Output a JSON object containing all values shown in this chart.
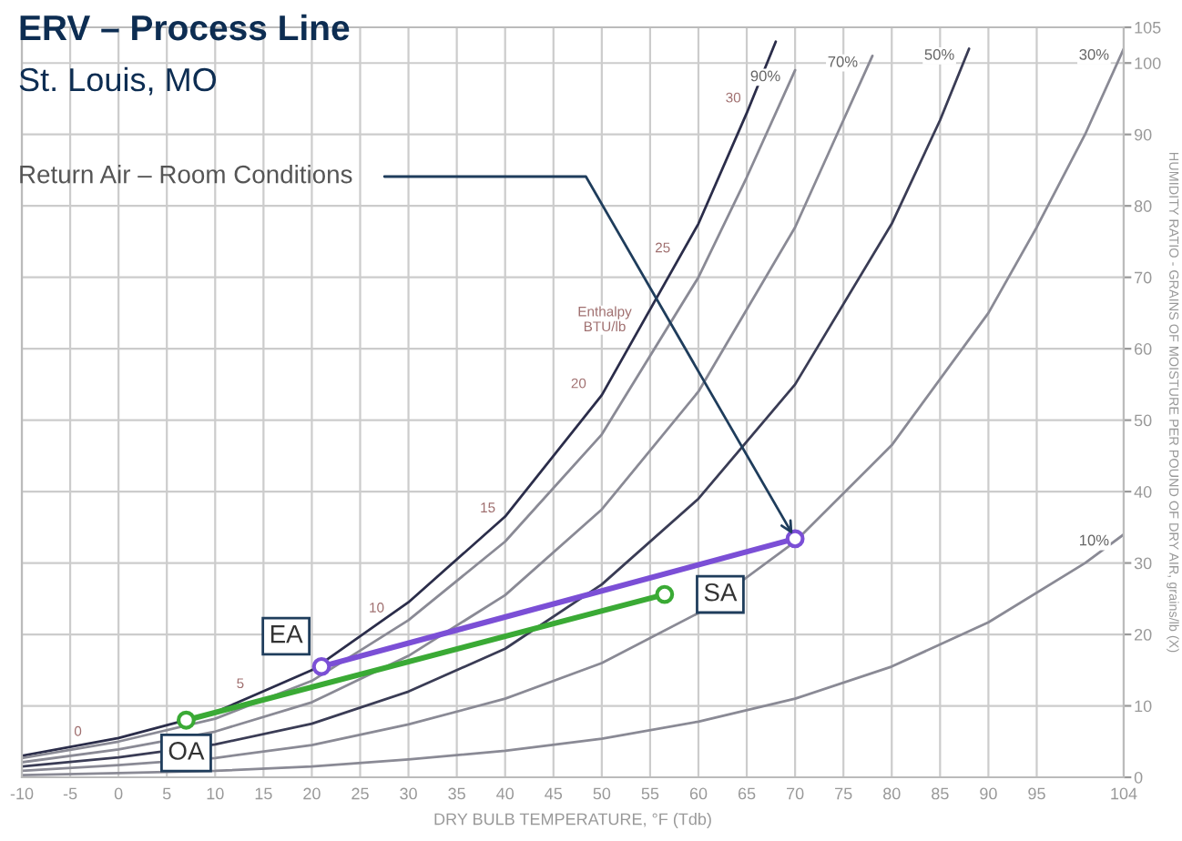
{
  "chart_data": {
    "type": "line",
    "title": "ERV – Process Line",
    "subtitle": "St. Louis, MO",
    "xlabel": "DRY BULB TEMPERATURE, °F (Tdb)",
    "ylabel": "HUMIDITY RATIO - GRAINS OF MOISTURE PER POUND OF DRY AIR, grains/lb (X)",
    "xlim": [
      -10,
      104
    ],
    "ylim": [
      0,
      105
    ],
    "xticks": [
      -10,
      -5,
      0,
      5,
      10,
      15,
      20,
      25,
      30,
      35,
      40,
      45,
      50,
      55,
      60,
      65,
      70,
      75,
      80,
      85,
      90,
      95,
      104
    ],
    "yticks": [
      0,
      10,
      20,
      30,
      40,
      50,
      60,
      70,
      80,
      90,
      100,
      105
    ],
    "grid": true,
    "legend": false,
    "series": [
      {
        "color": "#2b2d4a",
        "marker": "none",
        "x": [
          -10,
          0,
          10,
          20,
          30,
          40,
          50,
          60,
          65,
          68
        ],
        "values": [
          3.0,
          5.5,
          9.1,
          15.0,
          24.5,
          36.5,
          53.5,
          77.5,
          93,
          103
        ]
      },
      {
        "name": "90%",
        "color": "#8a8a95",
        "marker": "none",
        "x": [
          -10,
          0,
          10,
          20,
          30,
          40,
          50,
          60,
          65,
          70
        ],
        "values": [
          2.7,
          5.0,
          8.2,
          13.5,
          22,
          33,
          48,
          70,
          84,
          99
        ]
      },
      {
        "name": "70%",
        "color": "#8a8a95",
        "marker": "none",
        "x": [
          -10,
          0,
          10,
          20,
          30,
          40,
          50,
          60,
          70,
          75,
          78
        ],
        "values": [
          2.1,
          3.9,
          6.4,
          10.5,
          17,
          25.5,
          37.5,
          54,
          77,
          92,
          101
        ]
      },
      {
        "name": "50%",
        "color": "#3a3c55",
        "marker": "none",
        "x": [
          -10,
          0,
          10,
          20,
          30,
          40,
          50,
          60,
          70,
          80,
          85,
          88
        ],
        "values": [
          1.5,
          2.8,
          4.6,
          7.5,
          12,
          18,
          27,
          39,
          55,
          77.5,
          92,
          102
        ]
      },
      {
        "name": "30%",
        "color": "#8a8a95",
        "marker": "none",
        "x": [
          -10,
          0,
          10,
          20,
          30,
          40,
          50,
          60,
          70,
          80,
          90,
          95,
          100,
          104
        ],
        "values": [
          0.9,
          1.7,
          2.7,
          4.5,
          7.4,
          11,
          16,
          23,
          33,
          46.5,
          65,
          77,
          90,
          102
        ]
      },
      {
        "name": "10%",
        "color": "#8a8a95",
        "marker": "none",
        "x": [
          -10,
          0,
          10,
          20,
          30,
          40,
          50,
          60,
          70,
          80,
          90,
          100,
          104
        ],
        "values": [
          0.3,
          0.6,
          0.9,
          1.5,
          2.5,
          3.7,
          5.4,
          7.8,
          11,
          15.5,
          21.7,
          30,
          34
        ]
      },
      {
        "color": "#7b4fd6",
        "marker": "circle",
        "x": [
          21,
          70
        ],
        "values": [
          15.5,
          33.4
        ]
      },
      {
        "color": "#3aaa35",
        "marker": "circle",
        "x": [
          7,
          56.5
        ],
        "values": [
          8,
          25.6
        ]
      }
    ],
    "annotations": [
      {
        "text": "Return Air – Room Conditions",
        "x": 70,
        "y": 33.4
      },
      {
        "text": "OA",
        "x": 7,
        "y": 8
      },
      {
        "text": "EA",
        "x": 21,
        "y": 15.5
      },
      {
        "text": "SA",
        "x": 56.5,
        "y": 25.6
      },
      {
        "text": "0",
        "x": -4.2,
        "y": 6.3
      },
      {
        "text": "5",
        "x": 12.6,
        "y": 13
      },
      {
        "text": "10",
        "x": 26.7,
        "y": 23.6
      },
      {
        "text": "15",
        "x": 38.2,
        "y": 37.6
      },
      {
        "text": "20",
        "x": 47.6,
        "y": 55
      },
      {
        "text": "25",
        "x": 56.3,
        "y": 74
      },
      {
        "text": "30",
        "x": 63.6,
        "y": 95
      },
      {
        "text": "Enthalpy\nBTU/lb",
        "x": 50.3,
        "y": 64
      }
    ]
  }
}
